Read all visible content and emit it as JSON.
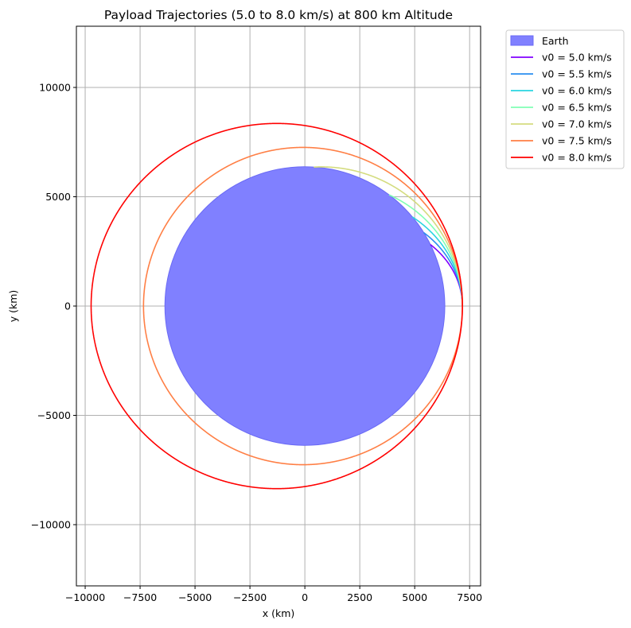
{
  "chart_data": {
    "type": "line",
    "title": "Payload Trajectories (5.0 to 8.0 km/s) at 800 km Altitude",
    "xlabel": "x (km)",
    "ylabel": "y (km)",
    "xlim": [
      -10400,
      8000
    ],
    "ylim": [
      -12800,
      12800
    ],
    "grid": true,
    "legend_placement": "outside upper-right",
    "x_ticks": [
      -10000,
      -7500,
      -5000,
      -2500,
      0,
      2500,
      5000,
      7500
    ],
    "x_tick_labels": [
      "−10000",
      "−7500",
      "−5000",
      "−2500",
      "0",
      "2500",
      "5000",
      "7500"
    ],
    "y_ticks": [
      -10000,
      -5000,
      0,
      5000,
      10000
    ],
    "y_tick_labels": [
      "−10000",
      "−5000",
      "0",
      "5000",
      "10000"
    ],
    "earth": {
      "label": "Earth",
      "center": [
        0,
        0
      ],
      "radius_km": 6371,
      "color": "#8080ff"
    },
    "initial_position_km": [
      7171,
      0
    ],
    "series": [
      {
        "name": "v0 = 5.0 km/s",
        "v0": 5.0,
        "color": "#8000ff"
      },
      {
        "name": "v0 = 5.5 km/s",
        "v0": 5.5,
        "color": "#2a8ef0"
      },
      {
        "name": "v0 = 6.0 km/s",
        "v0": 6.0,
        "color": "#2ad4e0"
      },
      {
        "name": "v0 = 6.5 km/s",
        "v0": 6.5,
        "color": "#80ffb4"
      },
      {
        "name": "v0 = 7.0 km/s",
        "v0": 7.0,
        "color": "#d4dc7f"
      },
      {
        "name": "v0 = 7.5 km/s",
        "v0": 7.5,
        "color": "#ff7f45"
      },
      {
        "name": "v0 = 8.0 km/s",
        "v0": 8.0,
        "color": "#ff0000"
      }
    ]
  }
}
